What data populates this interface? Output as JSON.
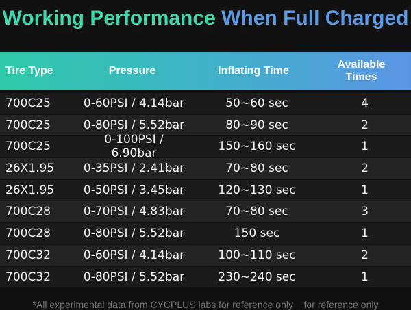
{
  "header": {
    "title_part1": "Working Performance",
    "title_part2": "When Full Charged"
  },
  "table": {
    "columns": [
      "Tire Type",
      "Pressure",
      "Inflating Time",
      "Available Times"
    ],
    "rows": [
      [
        "700C25",
        "0-60PSI / 4.14bar",
        "50~60 sec",
        "4"
      ],
      [
        "700C25",
        "0-80PSI / 5.52bar",
        "80~90 sec",
        "2"
      ],
      [
        "700C25",
        "0-100PSI / 6.90bar",
        "150~160 sec",
        "1"
      ],
      [
        "26X1.95",
        "0-35PSI / 2.41bar",
        "70~80 sec",
        "2"
      ],
      [
        "26X1.95",
        "0-50PSI / 3.45bar",
        "120~130 sec",
        "1"
      ],
      [
        "700C28",
        "0-70PSI / 4.83bar",
        "70~80 sec",
        "3"
      ],
      [
        "700C28",
        "0-80PSI / 5.52bar",
        "150 sec",
        "1"
      ],
      [
        "700C32",
        "0-60PSI / 4.14bar",
        "100~110 sec",
        "2"
      ],
      [
        "700C32",
        "0-80PSI / 5.52bar",
        "230~240 sec",
        "1"
      ]
    ]
  },
  "footnote": "*All experimental data from CYCPLUS labs for reference only    for reference only"
}
